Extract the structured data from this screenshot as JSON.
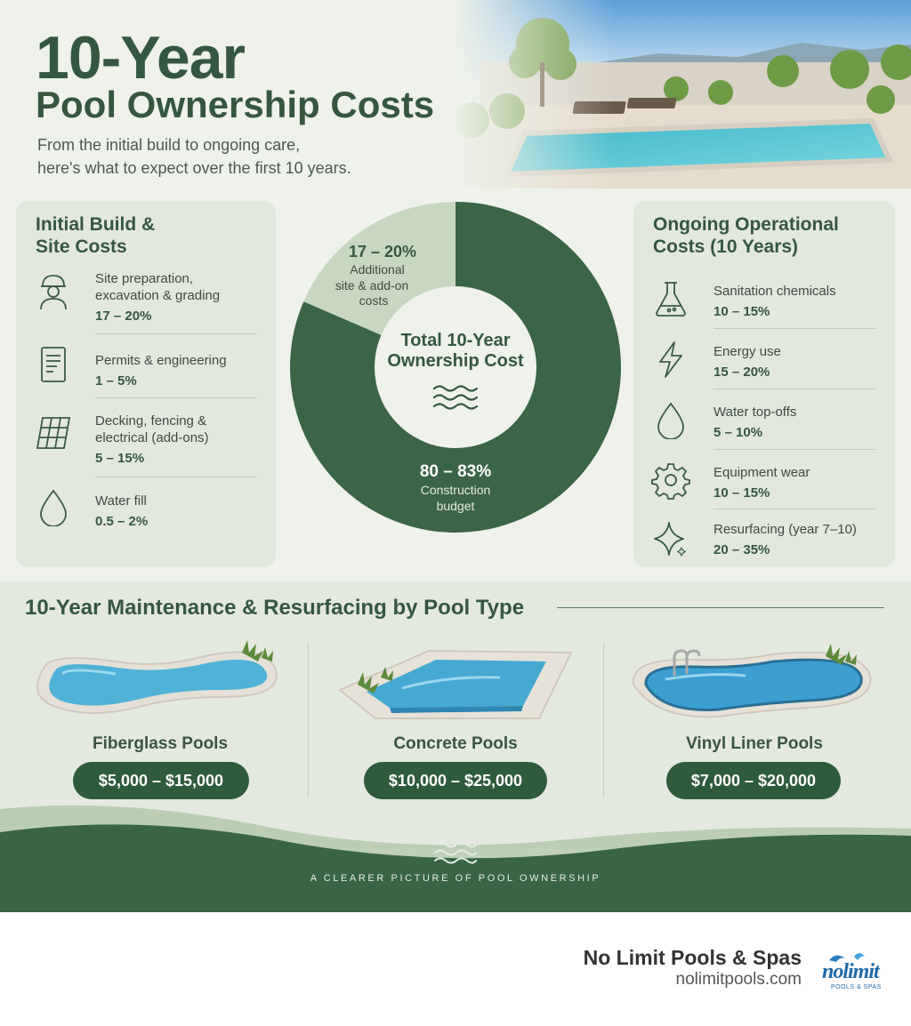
{
  "header": {
    "title_line1": "10-Year",
    "title_line2": "Pool Ownership Costs",
    "intro_line1": "From the initial build to ongoing care,",
    "intro_line2": "here's what to expect over the first 10 years."
  },
  "initial_panel": {
    "title_line1": "Initial Build &",
    "title_line2": "Site Costs",
    "items": [
      {
        "icon": "worker-icon",
        "label_line1": "Site preparation,",
        "label_line2": "excavation & grading",
        "value": "17 – 20%"
      },
      {
        "icon": "document-icon",
        "label_line1": "Permits & engineering",
        "label_line2": "",
        "value": "1 – 5%"
      },
      {
        "icon": "decking-grid-icon",
        "label_line1": "Decking, fencing &",
        "label_line2": "electrical (add-ons)",
        "value": "5 – 15%"
      },
      {
        "icon": "water-drop-icon",
        "label_line1": "Water fill",
        "label_line2": "",
        "value": "0.5 – 2%"
      }
    ]
  },
  "ongoing_panel": {
    "title_line1": "Ongoing Operational",
    "title_line2": "Costs (10 Years)",
    "items": [
      {
        "icon": "flask-icon",
        "label": "Sanitation chemicals",
        "value": "10 – 15%"
      },
      {
        "icon": "lightning-icon",
        "label": "Energy use",
        "value": "15 – 20%"
      },
      {
        "icon": "water-drop-icon",
        "label": "Water top-offs",
        "value": "5 – 10%"
      },
      {
        "icon": "gear-icon",
        "label": "Equipment wear",
        "value": "10 – 15%"
      },
      {
        "icon": "sparkle-icon",
        "label": "Resurfacing (year 7–10)",
        "value": "20 – 35%"
      }
    ]
  },
  "chart_data": {
    "type": "pie",
    "title": "Total 10-Year Ownership Cost",
    "center_label_line1": "Total 10-Year",
    "center_label_line2": "Ownership Cost",
    "slices": [
      {
        "value_label": "80 – 83%",
        "label_line1": "Construction",
        "label_line2": "budget",
        "share": 81.5,
        "color": "#3c6446"
      },
      {
        "value_label": "17 – 20%",
        "label_line1": "Additional",
        "label_line2": "site & add-on",
        "label_line3": "costs",
        "share": 18.5,
        "color": "#c8d8c0"
      }
    ]
  },
  "pool_types": {
    "title": "10-Year Maintenance & Resurfacing by Pool Type",
    "items": [
      {
        "name": "Fiberglass Pools",
        "range": "$5,000 – $15,000"
      },
      {
        "name": "Concrete Pools",
        "range": "$10,000 – $25,000"
      },
      {
        "name": "Vinyl Liner Pools",
        "range": "$7,000 – $20,000"
      }
    ]
  },
  "footer": {
    "tagline": "A CLEARER PICTURE OF POOL OWNERSHIP",
    "brand_name": "No Limit Pools & Spas",
    "brand_url": "nolimitpools.com",
    "logo_text": "nolimit",
    "logo_subtext": "POOLS & SPAS"
  },
  "colors": {
    "primary_green": "#35573f",
    "dark_green": "#2f5a3b",
    "light_green": "#c8d8c0",
    "background": "#eef2ea"
  }
}
